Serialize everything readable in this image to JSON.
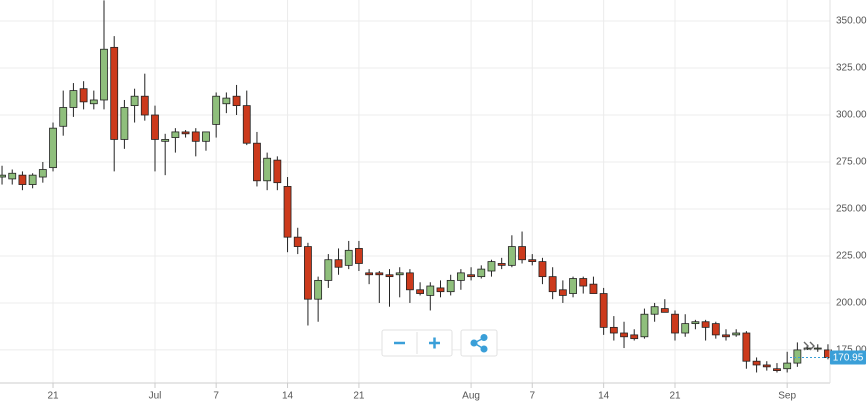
{
  "chart_data": {
    "type": "candlestick",
    "open": [
      267,
      266,
      268,
      263,
      267,
      272,
      294,
      304,
      314,
      306,
      308,
      336,
      287,
      305,
      310,
      300,
      286,
      288,
      291,
      291,
      286,
      295,
      306,
      310,
      305,
      285,
      265,
      276,
      262,
      235,
      230,
      202,
      212,
      223,
      220,
      229,
      216,
      216,
      215,
      215,
      216,
      207,
      204,
      208,
      206,
      212,
      215,
      214,
      217,
      221,
      220,
      230,
      223,
      222,
      214,
      207,
      205,
      213,
      210,
      205,
      187,
      184,
      183,
      182,
      194,
      197,
      194,
      184,
      189,
      190,
      189,
      183,
      183,
      184,
      169,
      167,
      165,
      165,
      168,
      176,
      176,
      175
    ],
    "high": [
      273,
      271,
      270,
      269,
      275,
      296,
      313,
      317,
      318,
      313,
      361,
      342,
      308,
      314,
      322,
      305,
      290,
      293,
      292,
      293,
      291,
      312,
      312,
      316,
      313,
      291,
      280,
      278,
      267,
      240,
      232,
      214,
      226,
      229,
      233,
      233,
      218,
      217,
      218,
      219,
      218,
      211,
      211,
      212,
      215,
      218,
      219,
      220,
      223,
      224,
      236,
      238,
      226,
      224,
      219,
      212,
      214,
      214,
      214,
      208,
      193,
      190,
      186,
      197,
      200,
      202,
      196,
      194,
      191,
      191,
      190,
      186,
      186,
      185,
      171,
      169,
      168,
      174,
      179,
      177,
      178,
      178
    ],
    "low": [
      263,
      263,
      260,
      261,
      264,
      270,
      289,
      299,
      303,
      303,
      303,
      270,
      282,
      296,
      297,
      270,
      268,
      280,
      288,
      278,
      281,
      288,
      301,
      300,
      284,
      262,
      260,
      260,
      227,
      226,
      188,
      190,
      208,
      215,
      218,
      217,
      210,
      200,
      198,
      203,
      200,
      204,
      196,
      203,
      204,
      207,
      212,
      213,
      214,
      218,
      219,
      221,
      220,
      210,
      202,
      200,
      203,
      205,
      205,
      183,
      180,
      176,
      180,
      181,
      190,
      195,
      180,
      182,
      186,
      180,
      181,
      180,
      182,
      165,
      163,
      164,
      163,
      163,
      166,
      175,
      174,
      170
    ],
    "close": [
      268,
      269,
      263,
      268,
      271,
      293,
      304,
      313,
      307,
      308,
      335,
      287,
      304,
      310,
      300,
      287,
      287,
      291,
      290,
      286,
      291,
      310,
      309,
      305,
      285,
      265,
      277,
      264,
      235,
      230,
      202,
      212,
      223,
      219,
      228,
      221,
      215,
      215,
      214,
      216,
      207,
      205,
      209,
      206,
      212,
      216,
      214,
      218,
      222,
      220,
      230,
      223,
      222,
      214,
      206,
      204,
      213,
      209,
      205,
      187,
      184,
      182,
      181,
      194,
      198,
      195,
      184,
      189,
      190,
      187,
      183,
      182,
      184,
      169,
      167,
      166,
      164,
      168,
      175,
      176,
      176,
      170.95
    ],
    "up_color": "#8fbf7c",
    "down_color": "#cc3a1c",
    "xlim": [
      -0.2,
      81.2
    ],
    "xticks": [
      {
        "value": 5,
        "label": "21"
      },
      {
        "value": 15,
        "label": "Jul"
      },
      {
        "value": 21,
        "label": "7"
      },
      {
        "value": 28,
        "label": "14"
      },
      {
        "value": 35,
        "label": "21"
      },
      {
        "value": 46,
        "label": "Aug"
      },
      {
        "value": 52,
        "label": "7"
      },
      {
        "value": 59,
        "label": "14"
      },
      {
        "value": 66,
        "label": "21"
      },
      {
        "value": 77,
        "label": "Sep"
      }
    ],
    "ylim": [
      157.4,
      361.2
    ],
    "yticks": [
      {
        "value": 175,
        "label": "175.00"
      },
      {
        "value": 200,
        "label": "200.00"
      },
      {
        "value": 225,
        "label": "225.00"
      },
      {
        "value": 250,
        "label": "250.00"
      },
      {
        "value": 275,
        "label": "275.00"
      },
      {
        "value": 300,
        "label": "300.00"
      },
      {
        "value": 325,
        "label": "325.00"
      },
      {
        "value": 350,
        "label": "350.00"
      }
    ],
    "grid": true,
    "last_price": 170.95
  }
}
